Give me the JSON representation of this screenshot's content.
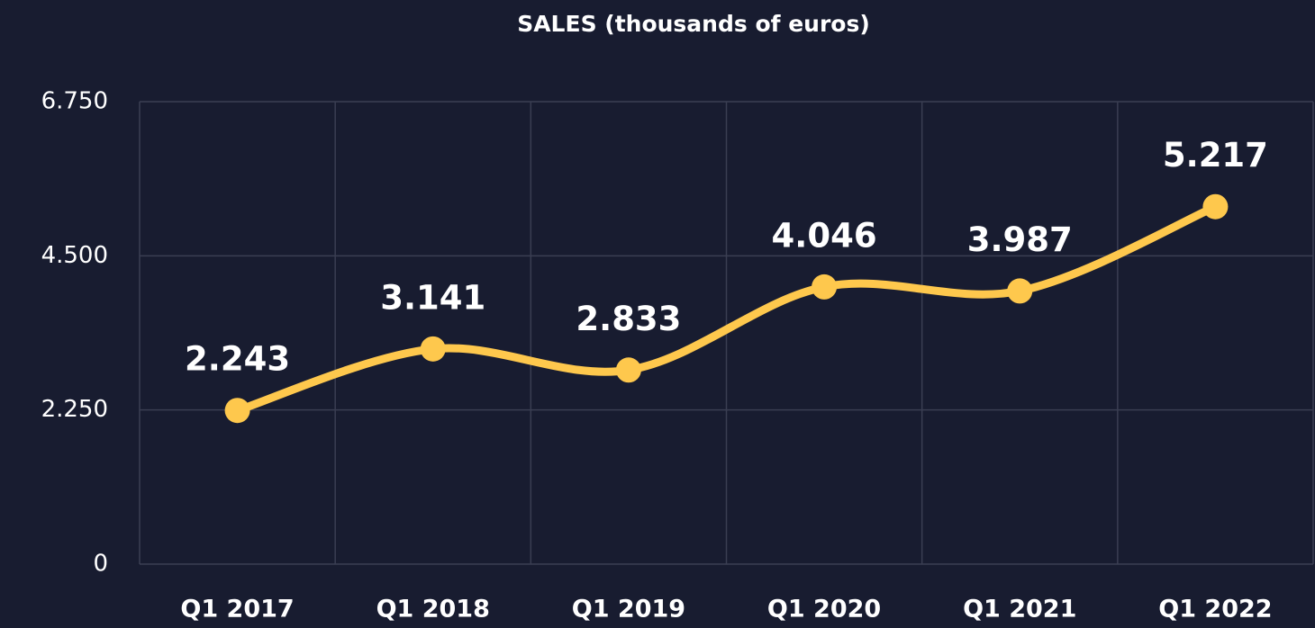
{
  "chart_data": {
    "type": "line",
    "title": "SALES (thousands of euros)",
    "categories": [
      "Q1 2017",
      "Q1 2018",
      "Q1 2019",
      "Q1 2020",
      "Q1 2021",
      "Q1 2022"
    ],
    "series": [
      {
        "name": "Sales",
        "color": "#fec84d",
        "values": [
          2243,
          3141,
          2833,
          4046,
          3987,
          5217
        ],
        "value_labels": [
          "2.243",
          "3.141",
          "2.833",
          "4.046",
          "3.987",
          "5.217"
        ]
      }
    ],
    "ylim": [
      0,
      6750
    ],
    "yticks": [
      0,
      {
        "value": 2250,
        "label": "2.250"
      },
      {
        "value": 4500,
        "label": "4.500"
      },
      {
        "value": 6750,
        "label": "6.750"
      }
    ],
    "grid": true,
    "smooth": true
  }
}
